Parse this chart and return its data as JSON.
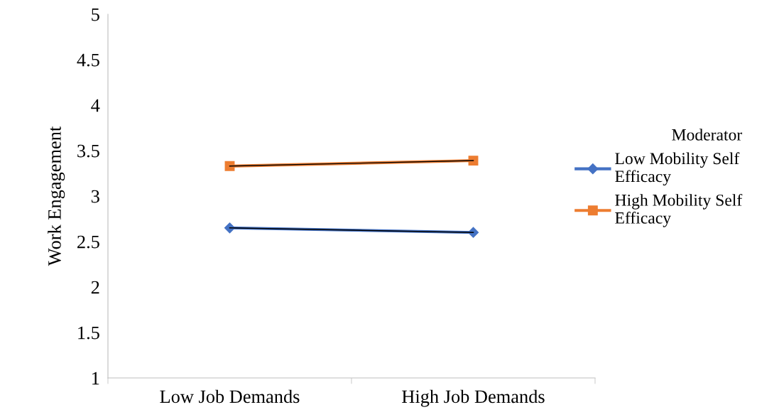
{
  "chart_data": {
    "type": "line",
    "ylabel": "Work Engagement",
    "legend_title": "Moderator",
    "legend": "right",
    "categories": [
      "Low Job Demands",
      "High Job Demands"
    ],
    "series": [
      {
        "name": "Low Mobility Self\nEfficacy",
        "color": "#4472c4",
        "values": [
          2.65,
          2.6
        ],
        "marker": "diamond"
      },
      {
        "name": "High Mobility Self\nEfficacy",
        "color": "#ed7d31",
        "values": [
          3.33,
          3.39
        ],
        "marker": "square"
      },
      {
        "color": "#000000",
        "values": [
          2.65,
          2.6
        ],
        "marker": "none"
      },
      {
        "color": "#000000",
        "values": [
          3.33,
          3.39
        ],
        "marker": "none"
      }
    ],
    "ylim": [
      1,
      5
    ],
    "yticks": [
      1,
      1.5,
      2,
      2.5,
      3,
      3.5,
      4,
      4.5,
      5
    ],
    "grid": false
  }
}
